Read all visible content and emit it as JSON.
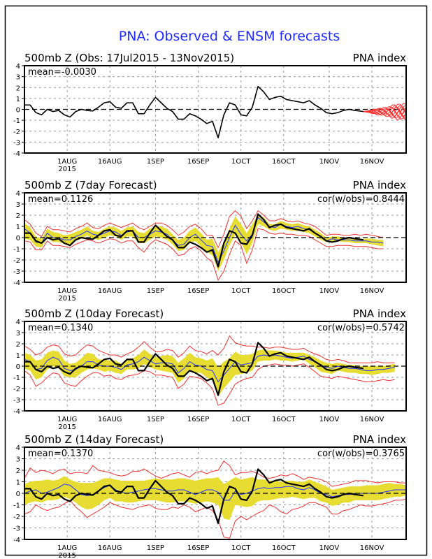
{
  "title": "PNA: Observed & ENSM forecasts",
  "colors": {
    "title": "#1f2bff",
    "observed": "#000000",
    "ens_mean": "#2233ff",
    "spread_fill": "#e6dc32",
    "ens_bound": "#ee3333",
    "members": "#ff3333",
    "grid": "#999999"
  },
  "chart_data": [
    {
      "type": "line",
      "panel": "observed",
      "left_title": "500mb Z (Obs: 17Jul2015 - 13Nov2015)",
      "right_title": "PNA index",
      "mean_label": "mean=-0.0030",
      "cor_label": "",
      "ylim": [
        -4,
        4
      ],
      "yticks": [
        "4",
        "3",
        "2",
        "1",
        "0",
        "-1",
        "-2",
        "-3",
        "-4"
      ],
      "xticks": [
        {
          "day": 15,
          "label": "1AUG",
          "sub": "2015"
        },
        {
          "day": 30,
          "label": "16AUG",
          "sub": ""
        },
        {
          "day": 46,
          "label": "1SEP",
          "sub": ""
        },
        {
          "day": 61,
          "label": "16SEP",
          "sub": ""
        },
        {
          "day": 76,
          "label": "1OCT",
          "sub": ""
        },
        {
          "day": 91,
          "label": "16OCT",
          "sub": ""
        },
        {
          "day": 107,
          "label": "1NOV",
          "sub": ""
        },
        {
          "day": 122,
          "label": "16NOV",
          "sub": ""
        }
      ],
      "x_start": "17Jul2015",
      "xlim_days": [
        0,
        134
      ],
      "grid": true,
      "series_names": [
        "observed",
        "ensemble members (14-day outlook)"
      ]
    },
    {
      "type": "area",
      "panel": "7day",
      "left_title": "500mb Z (7day Forecast)",
      "right_title": "PNA index",
      "mean_label": "mean=0.1126",
      "cor_label": "cor(w/obs)=0.8444",
      "ylim": [
        -4,
        4
      ],
      "lead_days": 7
    },
    {
      "type": "area",
      "panel": "10day",
      "left_title": "500mb Z (10day Forecast)",
      "right_title": "PNA index",
      "mean_label": "mean=0.1340",
      "cor_label": "cor(w/obs)=0.5742",
      "ylim": [
        -4,
        4
      ],
      "lead_days": 10
    },
    {
      "type": "area",
      "panel": "14day",
      "left_title": "500mb Z (14day Forecast)",
      "right_title": "PNA index",
      "mean_label": "mean=0.1370",
      "cor_label": "cor(w/obs)=0.3765",
      "ylim": [
        -4,
        4
      ],
      "lead_days": 14
    }
  ],
  "observed": {
    "days": [
      0,
      2,
      4,
      6,
      8,
      10,
      12,
      14,
      16,
      18,
      20,
      22,
      24,
      26,
      28,
      30,
      32,
      34,
      36,
      38,
      40,
      42,
      44,
      46,
      48,
      50,
      52,
      54,
      56,
      58,
      60,
      62,
      64,
      66,
      68,
      70,
      72,
      74,
      76,
      78,
      80,
      82,
      84,
      86,
      88,
      90,
      92,
      94,
      96,
      98,
      100,
      102,
      104,
      106,
      108,
      110,
      112,
      114,
      116,
      119
    ],
    "values": [
      0.4,
      0.4,
      -0.3,
      -0.5,
      0.0,
      -0.2,
      -0.1,
      -0.5,
      -0.7,
      -0.2,
      0.0,
      -0.1,
      -0.15,
      0.2,
      0.6,
      0.7,
      0.2,
      0.1,
      0.6,
      0.6,
      -0.4,
      -0.4,
      0.4,
      1.1,
      0.6,
      0.1,
      -0.2,
      -0.9,
      -0.9,
      -0.4,
      -0.6,
      -0.9,
      -1.3,
      -1.1,
      -2.6,
      -0.5,
      0.6,
      0.4,
      -0.5,
      -0.6,
      0.2,
      2.1,
      1.6,
      0.9,
      1.1,
      1.2,
      0.9,
      0.8,
      0.7,
      0.6,
      0.8,
      0.4,
      0.1,
      -0.3,
      -0.4,
      -0.3,
      -0.1,
      0.0,
      -0.1,
      -0.2
    ]
  },
  "members": {
    "start_day": 119,
    "end_day": 134,
    "count": 11,
    "spread": 0.7
  },
  "forecast_7day": {
    "days": [
      0,
      2,
      4,
      6,
      8,
      10,
      12,
      14,
      16,
      18,
      20,
      22,
      24,
      26,
      28,
      30,
      32,
      34,
      36,
      38,
      40,
      42,
      44,
      46,
      48,
      50,
      52,
      54,
      56,
      58,
      60,
      62,
      64,
      66,
      68,
      70,
      72,
      74,
      76,
      78,
      80,
      82,
      84,
      86,
      88,
      90,
      92,
      94,
      96,
      98,
      100,
      102,
      104,
      106,
      108,
      110,
      112,
      114,
      116,
      118,
      120,
      122,
      124,
      126
    ],
    "mean": [
      0.8,
      0.4,
      -0.4,
      -0.5,
      0.4,
      0.0,
      0.0,
      -0.2,
      -0.2,
      0.1,
      0.3,
      0.6,
      0.3,
      0.2,
      0.4,
      0.6,
      0.5,
      0.2,
      0.5,
      0.6,
      0.0,
      0.0,
      0.3,
      0.6,
      0.5,
      0.3,
      -0.2,
      -0.7,
      -0.6,
      0.0,
      0.3,
      -0.2,
      -0.7,
      -0.8,
      -2.2,
      -1.2,
      0.0,
      1.1,
      0.3,
      -0.3,
      0.3,
      1.8,
      1.4,
      1.0,
      0.9,
      1.2,
      1.0,
      0.9,
      1.0,
      0.8,
      0.7,
      0.4,
      0.1,
      -0.3,
      -0.1,
      -0.2,
      -0.2,
      -0.2,
      -0.3,
      -0.3,
      -0.3,
      -0.4,
      -0.4,
      -0.5
    ],
    "band_lo": [
      -0.1,
      -0.2,
      -0.8,
      -0.9,
      0.0,
      -0.4,
      -0.4,
      -0.6,
      -0.6,
      -0.3,
      -0.1,
      0.2,
      -0.1,
      -0.2,
      0.0,
      0.2,
      0.1,
      -0.2,
      0.1,
      0.1,
      -0.5,
      -0.5,
      -0.2,
      0.1,
      0.0,
      -0.2,
      -0.6,
      -1.2,
      -1.1,
      -0.5,
      -0.3,
      -0.8,
      -1.3,
      -1.6,
      -3.0,
      -2.0,
      -0.7,
      0.3,
      -0.4,
      -1.5,
      -0.5,
      1.2,
      1.0,
      0.7,
      0.6,
      0.8,
      0.7,
      0.6,
      0.6,
      0.5,
      0.4,
      0.1,
      -0.2,
      -0.4,
      -0.3,
      -0.3,
      -0.4,
      -0.4,
      -0.5,
      -0.5,
      -0.5,
      -0.6,
      -0.7,
      -0.8
    ],
    "band_hi": [
      1.3,
      0.9,
      0.1,
      -0.1,
      0.8,
      0.5,
      0.4,
      0.2,
      0.3,
      0.5,
      0.7,
      1.0,
      0.6,
      0.5,
      0.8,
      1.0,
      0.9,
      0.6,
      0.9,
      1.0,
      0.5,
      0.4,
      0.8,
      1.0,
      1.0,
      0.8,
      0.3,
      -0.2,
      0.0,
      0.6,
      0.9,
      0.4,
      -0.2,
      -0.1,
      -1.3,
      -0.4,
      0.8,
      1.9,
      1.2,
      0.4,
      1.2,
      2.1,
      1.8,
      1.2,
      1.2,
      1.5,
      1.3,
      1.2,
      1.3,
      1.1,
      1.0,
      0.7,
      0.4,
      0.0,
      0.1,
      0.1,
      0.0,
      0.0,
      0.0,
      -0.1,
      -0.1,
      -0.1,
      -0.2,
      -0.2
    ],
    "red_lo": [
      -0.3,
      -0.4,
      -1.1,
      -1.1,
      -0.3,
      -0.7,
      -0.7,
      -0.8,
      -0.9,
      -0.6,
      -0.4,
      -0.2,
      -0.3,
      -0.5,
      -0.3,
      -0.1,
      -0.2,
      -0.5,
      -0.3,
      -0.3,
      -0.9,
      -1.3,
      -0.6,
      -0.2,
      -0.4,
      -0.6,
      -1.0,
      -1.6,
      -1.5,
      -1.0,
      -0.8,
      -1.2,
      -1.8,
      -2.2,
      -3.8,
      -3.0,
      -1.5,
      -0.3,
      -0.7,
      -2.3,
      -1.1,
      0.8,
      0.7,
      0.4,
      0.3,
      0.4,
      0.3,
      0.3,
      0.2,
      0.2,
      0.1,
      -0.2,
      -0.5,
      -0.8,
      -0.8,
      -0.7,
      -0.7,
      -0.7,
      -0.8,
      -0.8,
      -0.8,
      -0.9,
      -1.0,
      -1.0
    ],
    "red_hi": [
      1.6,
      1.2,
      0.4,
      0.1,
      1.0,
      0.7,
      0.7,
      0.6,
      0.5,
      0.8,
      1.0,
      1.3,
      0.9,
      0.8,
      1.1,
      1.3,
      1.1,
      0.9,
      1.1,
      1.3,
      0.9,
      0.7,
      1.0,
      1.3,
      1.3,
      1.1,
      0.7,
      0.2,
      0.5,
      1.0,
      1.2,
      0.8,
      0.2,
      0.2,
      -0.9,
      0.3,
      1.9,
      2.4,
      1.9,
      0.8,
      1.5,
      2.4,
      2.0,
      1.5,
      1.5,
      1.7,
      1.5,
      1.4,
      1.5,
      1.3,
      1.2,
      1.0,
      0.6,
      0.2,
      0.3,
      0.3,
      0.2,
      0.2,
      0.3,
      0.2,
      0.3,
      0.2,
      0.1,
      0.0
    ]
  },
  "forecast_10day": {
    "days": [
      0,
      2,
      4,
      6,
      8,
      10,
      12,
      14,
      16,
      18,
      20,
      22,
      24,
      26,
      28,
      30,
      32,
      34,
      36,
      38,
      40,
      42,
      44,
      46,
      48,
      50,
      52,
      54,
      56,
      58,
      60,
      62,
      64,
      66,
      68,
      70,
      72,
      74,
      76,
      78,
      80,
      82,
      84,
      86,
      88,
      90,
      92,
      94,
      96,
      98,
      100,
      102,
      104,
      106,
      108,
      110,
      112,
      114,
      116,
      118,
      120,
      122,
      124,
      126,
      128,
      130
    ],
    "mean": [
      0.6,
      0.4,
      -0.3,
      -0.2,
      0.5,
      0.8,
      0.6,
      -0.2,
      -0.4,
      -0.3,
      0.0,
      0.4,
      0.4,
      0.1,
      0.0,
      0.0,
      -0.1,
      -0.3,
      0.1,
      0.2,
      0.4,
      0.8,
      0.5,
      0.2,
      0.3,
      0.3,
      0.2,
      -0.6,
      -0.2,
      0.4,
      0.1,
      0.0,
      -0.3,
      -0.4,
      -1.4,
      -0.8,
      -0.2,
      0.4,
      0.1,
      0.2,
      0.3,
      0.9,
      1.0,
      0.9,
      1.0,
      0.9,
      0.8,
      0.7,
      0.8,
      0.9,
      0.6,
      0.4,
      0.1,
      -0.1,
      -0.2,
      0.0,
      -0.1,
      -0.2,
      -0.2,
      -0.3,
      -0.4,
      -0.4,
      -0.3,
      -0.3,
      -0.2,
      -0.1
    ],
    "band_lo": [
      -0.2,
      -0.4,
      -1.2,
      -1.0,
      -0.3,
      0.0,
      -0.2,
      -0.9,
      -1.0,
      -1.0,
      -0.6,
      -0.3,
      -0.2,
      -0.3,
      -0.5,
      -0.4,
      -0.6,
      -0.7,
      -0.3,
      -0.3,
      -0.2,
      0.2,
      -0.1,
      -0.3,
      -0.4,
      -0.5,
      -0.6,
      -1.5,
      -1.1,
      -0.3,
      -0.6,
      -0.6,
      -1.0,
      -1.3,
      -2.7,
      -2.0,
      -1.4,
      -0.8,
      -0.7,
      -0.6,
      -0.4,
      0.4,
      0.5,
      0.5,
      0.6,
      0.5,
      0.5,
      0.4,
      0.5,
      0.6,
      0.2,
      -0.1,
      -0.5,
      -0.6,
      -0.7,
      -0.4,
      -0.5,
      -0.6,
      -0.6,
      -0.7,
      -0.7,
      -0.8,
      -0.7,
      -0.6,
      -0.6,
      -0.5
    ],
    "band_hi": [
      1.2,
      1.0,
      0.5,
      0.6,
      1.2,
      1.4,
      1.3,
      0.5,
      0.2,
      0.3,
      0.7,
      1.2,
      1.1,
      0.6,
      0.6,
      0.5,
      0.5,
      0.2,
      0.6,
      0.7,
      1.0,
      1.5,
      1.1,
      0.8,
      0.9,
      1.0,
      0.9,
      0.3,
      0.7,
      1.2,
      0.8,
      0.7,
      0.5,
      0.7,
      -0.1,
      0.4,
      0.7,
      1.3,
      1.0,
      1.0,
      1.1,
      1.4,
      1.5,
      1.4,
      1.4,
      1.3,
      1.2,
      1.2,
      1.2,
      1.2,
      1.0,
      0.8,
      0.5,
      0.3,
      0.2,
      0.3,
      0.2,
      0.1,
      0.1,
      0.0,
      0.0,
      0.0,
      0.0,
      0.0,
      0.1,
      0.2
    ],
    "red_lo": [
      -0.4,
      -0.8,
      -1.8,
      -1.5,
      -1.0,
      -0.6,
      -0.7,
      -1.5,
      -1.7,
      -1.8,
      -1.3,
      -0.9,
      -0.6,
      -0.6,
      -0.9,
      -0.8,
      -1.1,
      -1.2,
      -0.9,
      -0.8,
      -0.7,
      -0.4,
      -0.5,
      -0.8,
      -0.8,
      -0.9,
      -1.0,
      -2.0,
      -1.6,
      -0.9,
      -1.0,
      -1.1,
      -1.5,
      -2.0,
      -3.5,
      -3.3,
      -2.5,
      -1.6,
      -1.3,
      -1.1,
      -1.0,
      -0.3,
      0.0,
      0.1,
      0.2,
      0.1,
      0.1,
      0.0,
      0.1,
      0.2,
      -0.1,
      -0.5,
      -0.9,
      -1.0,
      -1.1,
      -0.9,
      -1.0,
      -1.1,
      -1.2,
      -1.3,
      -1.4,
      -1.4,
      -1.3,
      -1.2,
      -1.3,
      -1.2
    ],
    "red_hi": [
      1.8,
      1.5,
      1.0,
      1.2,
      1.7,
      1.9,
      1.8,
      1.1,
      0.9,
      1.0,
      1.5,
      1.9,
      1.8,
      1.4,
      1.2,
      1.0,
      1.0,
      0.8,
      1.1,
      1.3,
      1.7,
      2.2,
      1.7,
      1.3,
      1.3,
      1.5,
      1.4,
      0.8,
      1.2,
      1.8,
      1.4,
      1.3,
      1.1,
      1.4,
      1.0,
      1.6,
      2.7,
      2.1,
      1.9,
      1.8,
      1.8,
      1.7,
      1.7,
      1.6,
      1.7,
      1.7,
      1.6,
      1.5,
      1.5,
      1.6,
      1.3,
      1.1,
      0.9,
      0.6,
      0.5,
      0.6,
      0.5,
      0.3,
      0.3,
      0.3,
      0.3,
      0.3,
      0.4,
      0.3,
      0.3,
      0.3
    ]
  },
  "forecast_14day": {
    "days": [
      0,
      2,
      4,
      6,
      8,
      10,
      12,
      14,
      16,
      18,
      20,
      22,
      24,
      26,
      28,
      30,
      32,
      34,
      36,
      38,
      40,
      42,
      44,
      46,
      48,
      50,
      52,
      54,
      56,
      58,
      60,
      62,
      64,
      66,
      68,
      70,
      72,
      74,
      76,
      78,
      80,
      82,
      84,
      86,
      88,
      90,
      92,
      94,
      96,
      98,
      100,
      102,
      104,
      106,
      108,
      110,
      112,
      114,
      116,
      118,
      120,
      122,
      124,
      126,
      128,
      130,
      132,
      134
    ],
    "mean": [
      0.0,
      0.2,
      0.3,
      0.0,
      0.1,
      0.3,
      0.5,
      0.8,
      0.7,
      0.3,
      -0.1,
      -0.2,
      -0.1,
      0.2,
      0.5,
      0.7,
      0.3,
      0.1,
      0.0,
      0.1,
      0.2,
      0.3,
      0.4,
      0.4,
      0.3,
      0.2,
      0.2,
      0.3,
      0.3,
      0.1,
      -0.1,
      0.1,
      0.3,
      0.3,
      0.1,
      -0.6,
      -0.6,
      0.2,
      -0.1,
      0.0,
      0.2,
      0.4,
      0.5,
      0.4,
      0.5,
      0.5,
      0.6,
      0.6,
      0.4,
      0.3,
      0.5,
      0.3,
      0.0,
      -0.1,
      -0.3,
      -0.2,
      -0.1,
      -0.1,
      0.0,
      0.0,
      0.0,
      0.0,
      0.0,
      0.1,
      0.2,
      0.3,
      0.3,
      0.3
    ],
    "band_lo": [
      -1.0,
      -0.8,
      -0.7,
      -0.8,
      -0.6,
      -0.6,
      -0.5,
      -0.3,
      -0.5,
      -0.8,
      -1.2,
      -1.4,
      -1.3,
      -1.0,
      -0.6,
      -0.4,
      -0.7,
      -0.7,
      -0.8,
      -0.8,
      -0.7,
      -0.6,
      -0.6,
      -0.6,
      -0.7,
      -0.8,
      -0.8,
      -0.7,
      -0.7,
      -0.8,
      -0.9,
      -0.8,
      -0.7,
      -0.8,
      -1.0,
      -2.2,
      -2.3,
      -1.0,
      -1.1,
      -1.2,
      -1.1,
      -0.7,
      -0.6,
      -0.6,
      -0.5,
      -0.4,
      -0.4,
      -0.3,
      -0.4,
      -0.5,
      -0.4,
      -0.4,
      -0.7,
      -0.8,
      -1.1,
      -1.0,
      -0.8,
      -0.8,
      -0.6,
      -0.6,
      -0.6,
      -0.6,
      -0.6,
      -0.5,
      -0.4,
      -0.3,
      -0.3,
      -0.2
    ],
    "band_hi": [
      0.8,
      1.0,
      1.1,
      1.1,
      1.2,
      1.1,
      1.2,
      1.5,
      1.2,
      1.0,
      0.9,
      0.9,
      0.9,
      1.1,
      1.3,
      1.3,
      1.2,
      1.1,
      1.1,
      1.1,
      1.1,
      1.1,
      1.2,
      1.3,
      1.2,
      1.2,
      1.2,
      1.3,
      1.3,
      1.2,
      1.1,
      1.2,
      1.3,
      1.3,
      1.4,
      0.8,
      1.1,
      1.4,
      1.2,
      1.3,
      1.4,
      1.2,
      1.2,
      1.1,
      1.1,
      1.0,
      1.1,
      1.1,
      1.0,
      1.0,
      1.2,
      1.0,
      0.8,
      0.6,
      0.3,
      0.4,
      0.5,
      0.6,
      0.6,
      0.6,
      0.7,
      0.7,
      0.7,
      0.8,
      0.9,
      0.8,
      0.8,
      0.7
    ],
    "red_lo": [
      -1.8,
      -1.6,
      -1.0,
      -1.3,
      -1.5,
      -1.3,
      -1.2,
      -0.9,
      -0.6,
      -1.2,
      -1.6,
      -2.1,
      -1.8,
      -1.5,
      -1.2,
      -0.8,
      -1.0,
      -1.2,
      -1.3,
      -1.4,
      -1.2,
      -1.1,
      -1.0,
      -1.3,
      -1.4,
      -1.4,
      -1.2,
      -1.3,
      -1.0,
      -1.2,
      -1.6,
      -1.4,
      -1.2,
      -1.5,
      -2.3,
      -3.8,
      -3.9,
      -2.4,
      -2.0,
      -2.3,
      -2.0,
      -1.7,
      -1.5,
      -1.0,
      -1.2,
      -1.6,
      -1.8,
      -1.4,
      -1.3,
      -1.1,
      -0.8,
      -0.8,
      -1.0,
      -1.2,
      -1.8,
      -1.8,
      -1.5,
      -1.4,
      -1.2,
      -1.0,
      -1.1,
      -1.1,
      -1.0,
      -0.9,
      -0.8,
      -0.6,
      -0.6,
      -0.5
    ],
    "red_hi": [
      1.3,
      2.2,
      1.8,
      2.0,
      1.9,
      1.7,
      2.0,
      2.1,
      1.7,
      1.8,
      1.8,
      1.7,
      2.4,
      2.0,
      1.9,
      1.8,
      1.6,
      1.5,
      1.6,
      1.9,
      1.9,
      2.1,
      1.8,
      1.5,
      1.3,
      1.5,
      1.7,
      1.8,
      1.6,
      1.4,
      1.8,
      1.9,
      1.7,
      1.9,
      2.0,
      2.8,
      2.4,
      1.6,
      1.8,
      1.8,
      1.9,
      1.7,
      1.4,
      1.3,
      1.4,
      1.6,
      1.5,
      1.7,
      1.5,
      1.2,
      1.4,
      1.3,
      1.2,
      1.0,
      0.6,
      0.7,
      0.8,
      0.9,
      1.1,
      1.1,
      1.1,
      1.0,
      0.9,
      1.0,
      1.0,
      1.0,
      0.9,
      0.9
    ]
  }
}
